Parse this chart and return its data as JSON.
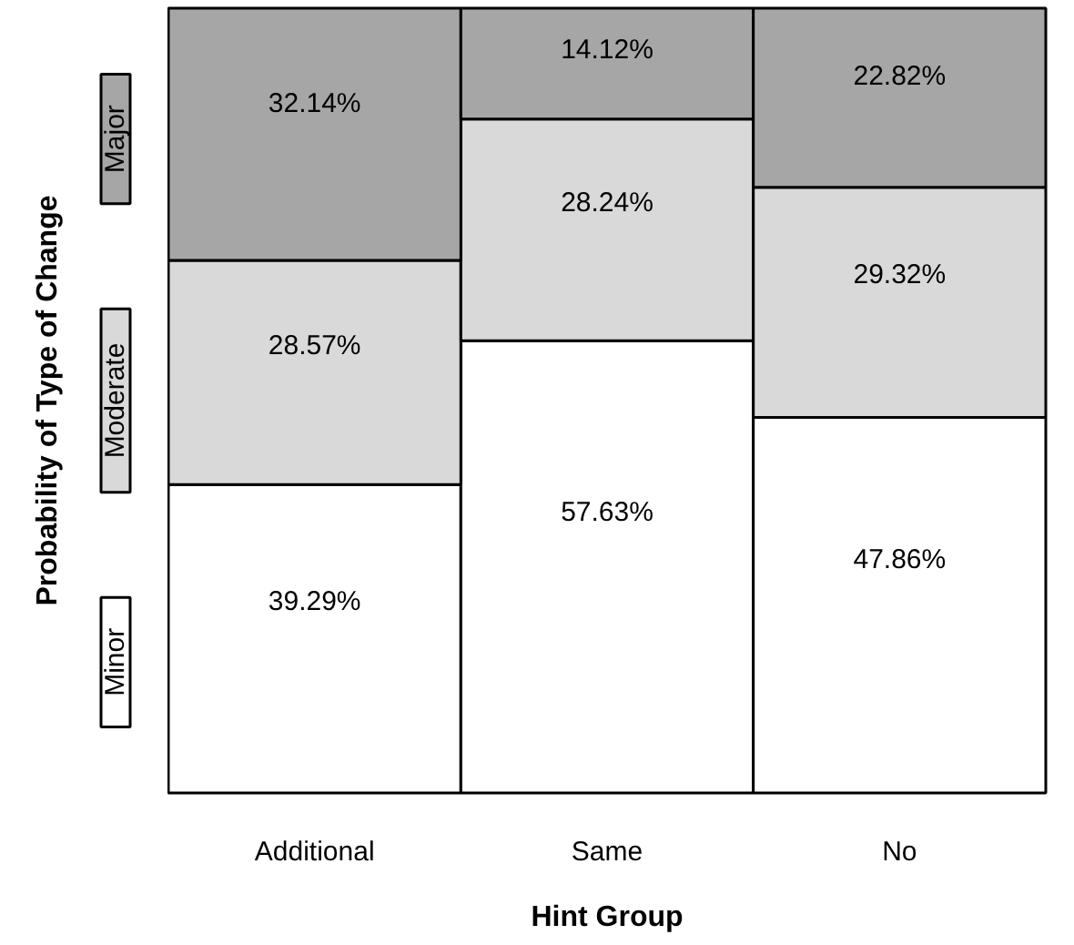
{
  "chart_data": {
    "type": "bar",
    "stacked": true,
    "xlabel": "Hint Group",
    "ylabel": "Probability of Type of Change",
    "categories": [
      "Additional",
      "Same",
      "No"
    ],
    "series": [
      {
        "name": "Minor",
        "color": "#ffffff",
        "values": [
          39.29,
          57.63,
          47.86
        ],
        "value_labels": [
          "39.29%",
          "57.63%",
          "47.86%"
        ]
      },
      {
        "name": "Moderate",
        "color": "#d9d9d9",
        "values": [
          28.57,
          28.24,
          29.32
        ],
        "value_labels": [
          "28.57%",
          "28.24%",
          "29.32%"
        ]
      },
      {
        "name": "Major",
        "color": "#a6a6a6",
        "values": [
          32.14,
          14.12,
          22.82
        ],
        "value_labels": [
          "32.14%",
          "14.12%",
          "22.82%"
        ]
      }
    ],
    "ylim": [
      0,
      100
    ],
    "tick_labels": "x",
    "legend": "left"
  }
}
